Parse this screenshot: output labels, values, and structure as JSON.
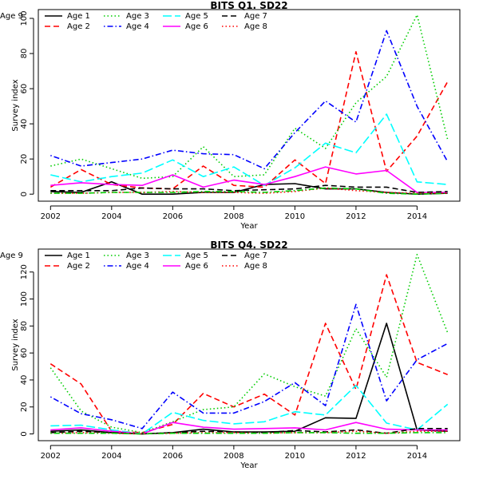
{
  "chart_data": [
    {
      "type": "line",
      "title": "BITS Q1. SD22",
      "xlabel": "Year",
      "ylabel": "Survey index",
      "xlim": [
        2001.6,
        2015.4
      ],
      "ylim": [
        -4,
        105
      ],
      "xticks": [
        2002,
        2004,
        2006,
        2008,
        2010,
        2012,
        2014
      ],
      "yticks": [
        0,
        20,
        40,
        60,
        80,
        100
      ],
      "x": [
        2002,
        2003,
        2004,
        2005,
        2006,
        2007,
        2008,
        2009,
        2010,
        2011,
        2012,
        2013,
        2014,
        2015
      ],
      "legend_position": "top-left",
      "grid": false,
      "series": [
        {
          "name": "Age 1",
          "color": "#000000",
          "dash": "solid",
          "values": [
            1.5,
            1.0,
            7.0,
            0.0,
            0.0,
            1.0,
            1.0,
            5.5,
            6.0,
            3.0,
            3.0,
            1.0,
            0.0,
            0.5
          ]
        },
        {
          "name": "Age 2",
          "color": "#ff0000",
          "dash": "dashed",
          "values": [
            4.0,
            14.0,
            5.5,
            3.5,
            3.0,
            16.0,
            5.0,
            4.0,
            19.5,
            6.0,
            81.0,
            13.0,
            33.0,
            64.0
          ]
        },
        {
          "name": "Age 3",
          "color": "#00cd00",
          "dash": "dotted",
          "values": [
            16.0,
            20.0,
            14.5,
            9.0,
            10.0,
            27.0,
            10.0,
            11.0,
            37.5,
            26.0,
            52.0,
            67.0,
            102.0,
            31.0
          ]
        },
        {
          "name": "Age 4",
          "color": "#0000ff",
          "dash": "dotdash",
          "values": [
            22.0,
            16.0,
            18.0,
            20.0,
            25.0,
            23.0,
            22.5,
            14.5,
            35.0,
            53.0,
            41.0,
            93.0,
            50.0,
            18.5
          ]
        },
        {
          "name": "Age 5",
          "color": "#00ffff",
          "dash": "longdash",
          "values": [
            11.0,
            7.0,
            10.0,
            12.0,
            19.5,
            10.0,
            15.5,
            5.0,
            15.0,
            29.0,
            23.5,
            45.5,
            7.0,
            5.5
          ]
        },
        {
          "name": "Age 6",
          "color": "#ff00ff",
          "dash": "solid",
          "values": [
            5.0,
            6.5,
            5.5,
            5.0,
            11.0,
            4.0,
            8.0,
            5.5,
            10.0,
            15.5,
            11.5,
            13.5,
            1.0,
            1.0
          ]
        },
        {
          "name": "Age 7",
          "color": "#000000",
          "dash": "dashed",
          "values": [
            2.0,
            2.0,
            2.0,
            3.5,
            3.0,
            3.0,
            2.0,
            2.5,
            3.0,
            5.0,
            4.0,
            4.0,
            1.0,
            1.5
          ]
        },
        {
          "name": "Age 8",
          "color": "#ff0000",
          "dash": "dotted",
          "values": [
            0.5,
            0.5,
            1.0,
            1.0,
            1.5,
            1.0,
            1.0,
            0.5,
            1.5,
            3.5,
            2.0,
            1.0,
            0.5,
            0.5
          ]
        },
        {
          "name": "Age 9",
          "color": "#00cd00",
          "dash": "dotdash",
          "values": [
            0.5,
            0.5,
            1.0,
            1.0,
            1.0,
            1.5,
            1.5,
            1.0,
            2.0,
            3.5,
            3.0,
            0.5,
            0.0,
            0.5
          ]
        }
      ]
    },
    {
      "type": "line",
      "title": "BITS Q4. SD22",
      "xlabel": "Year",
      "ylabel": "Survey index",
      "xlim": [
        2001.6,
        2015.4
      ],
      "ylim": [
        -5,
        137
      ],
      "xticks": [
        2002,
        2004,
        2006,
        2008,
        2010,
        2012,
        2014
      ],
      "yticks": [
        0,
        20,
        40,
        60,
        80,
        100,
        120
      ],
      "x": [
        2002,
        2003,
        2004,
        2005,
        2006,
        2007,
        2008,
        2009,
        2010,
        2011,
        2012,
        2013,
        2014,
        2015
      ],
      "legend_position": "top-left",
      "grid": false,
      "series": [
        {
          "name": "Age 1",
          "color": "#000000",
          "dash": "solid",
          "values": [
            2.0,
            3.0,
            1.0,
            0.0,
            1.0,
            3.5,
            1.5,
            1.5,
            2.0,
            12.0,
            11.5,
            82.0,
            3.0,
            2.0
          ]
        },
        {
          "name": "Age 2",
          "color": "#ff0000",
          "dash": "dashed",
          "values": [
            52.0,
            37.0,
            2.0,
            1.0,
            7.0,
            30.0,
            20.0,
            29.5,
            14.0,
            82.0,
            33.0,
            118.0,
            53.0,
            44.0
          ]
        },
        {
          "name": "Age 3",
          "color": "#00cd00",
          "dash": "dotted",
          "values": [
            49.0,
            17.0,
            5.0,
            1.0,
            9.0,
            18.0,
            20.0,
            44.5,
            35.0,
            28.0,
            78.0,
            42.0,
            133.0,
            75.0
          ]
        },
        {
          "name": "Age 4",
          "color": "#0000ff",
          "dash": "dotdash",
          "values": [
            27.5,
            15.0,
            10.5,
            4.0,
            31.0,
            15.5,
            15.5,
            24.0,
            38.0,
            21.0,
            96.0,
            24.5,
            55.0,
            67.0
          ]
        },
        {
          "name": "Age 5",
          "color": "#00ffff",
          "dash": "longdash",
          "values": [
            6.0,
            6.5,
            3.0,
            0.0,
            16.0,
            10.0,
            7.5,
            9.0,
            16.5,
            14.0,
            36.0,
            8.0,
            3.0,
            22.0
          ]
        },
        {
          "name": "Age 6",
          "color": "#ff00ff",
          "dash": "solid",
          "values": [
            3.0,
            4.5,
            2.0,
            0.0,
            8.5,
            5.0,
            3.5,
            4.0,
            4.5,
            3.0,
            8.5,
            3.5,
            3.0,
            3.0
          ]
        },
        {
          "name": "Age 7",
          "color": "#000000",
          "dash": "dashed",
          "values": [
            1.0,
            2.0,
            1.0,
            0.0,
            1.0,
            2.0,
            1.5,
            1.0,
            2.5,
            1.5,
            3.0,
            0.5,
            4.0,
            4.0
          ]
        },
        {
          "name": "Age 8",
          "color": "#ff0000",
          "dash": "dotted",
          "values": [
            0.5,
            1.0,
            0.5,
            0.0,
            0.5,
            1.0,
            1.0,
            0.5,
            1.0,
            1.0,
            2.0,
            0.5,
            2.0,
            2.0
          ]
        },
        {
          "name": "Age 9",
          "color": "#00cd00",
          "dash": "dotdash",
          "values": [
            0.5,
            0.5,
            0.5,
            0.0,
            0.5,
            0.5,
            0.5,
            0.5,
            1.0,
            1.0,
            0.5,
            0.5,
            1.0,
            1.0
          ]
        }
      ]
    }
  ]
}
